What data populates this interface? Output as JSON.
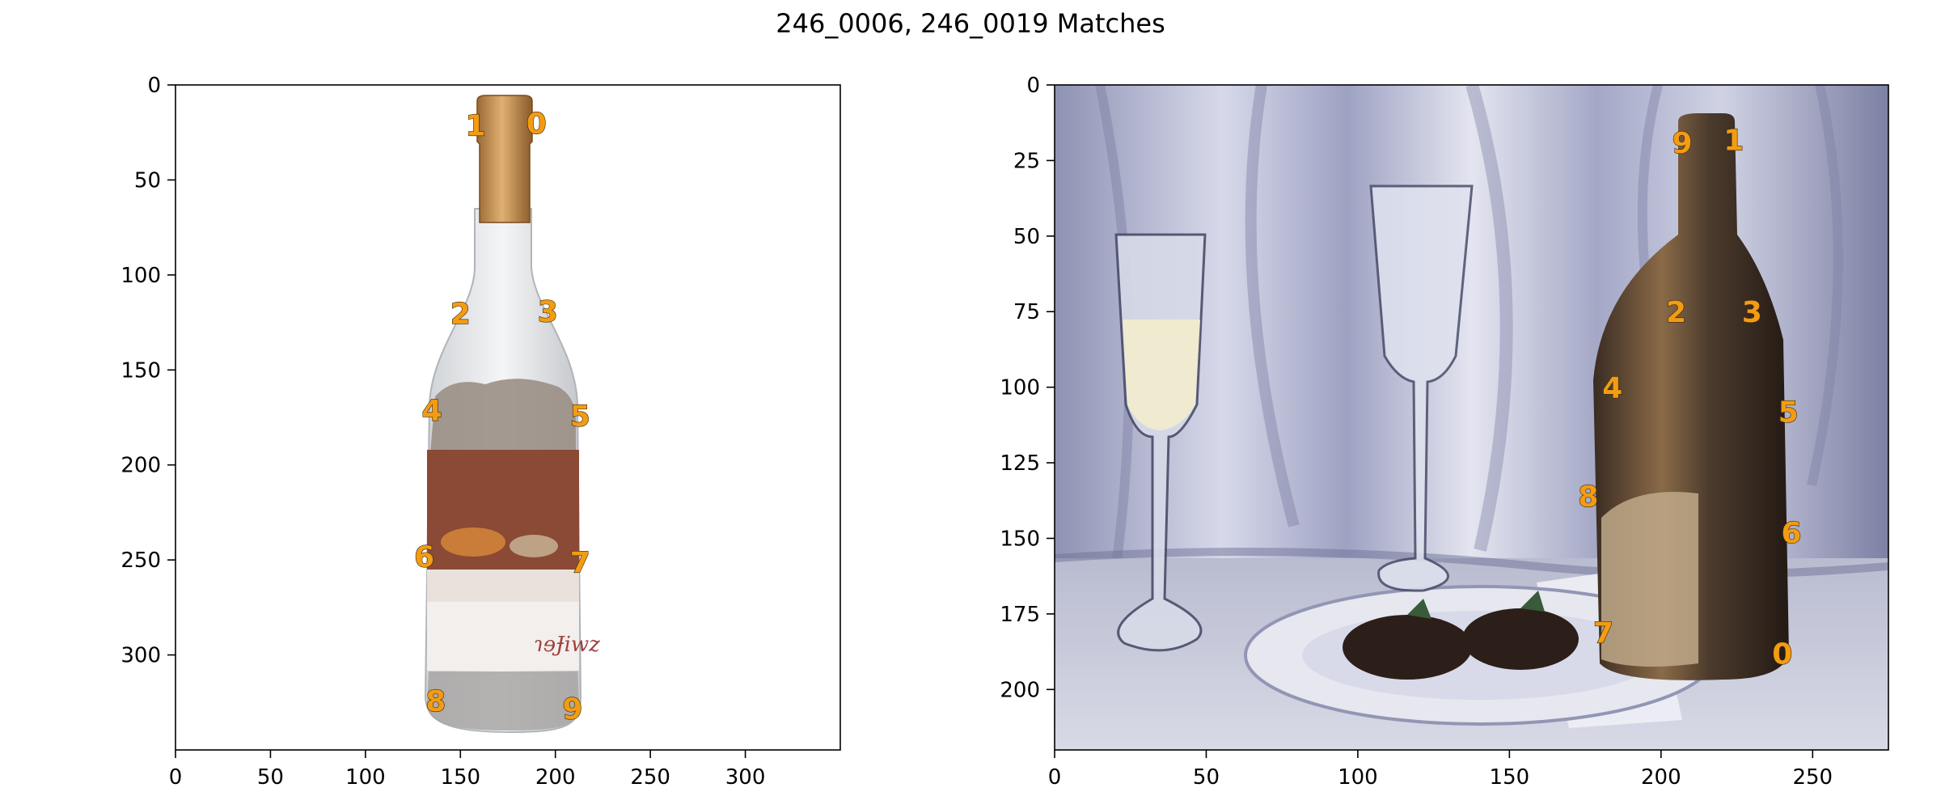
{
  "figure": {
    "title": "246_0006, 246_0019 Matches"
  },
  "colors": {
    "keypoint_label": "#f39c12",
    "background": "#ffffff",
    "axes": "#000000",
    "left_cork": "#c8975a",
    "left_label_band": "#8a4a36",
    "right_bottle": "#4a3a2c",
    "right_drape": "#9fa3c3"
  },
  "chart_data": [
    {
      "type": "scatter",
      "image": "246_0006",
      "image_content": "photo of clear glass bottle filled with jigsaw puzzle pieces, copper cap, painted still-life label",
      "xlim": [
        0,
        350
      ],
      "ylim": [
        350,
        0
      ],
      "xticks": [
        0,
        50,
        100,
        150,
        200,
        250,
        300
      ],
      "yticks": [
        0,
        50,
        100,
        150,
        200,
        250,
        300
      ],
      "grid": false,
      "keypoints": [
        {
          "label": "0",
          "x": 190,
          "y": 20
        },
        {
          "label": "1",
          "x": 158,
          "y": 21
        },
        {
          "label": "2",
          "x": 150,
          "y": 120
        },
        {
          "label": "3",
          "x": 196,
          "y": 119
        },
        {
          "label": "4",
          "x": 135,
          "y": 171
        },
        {
          "label": "5",
          "x": 213,
          "y": 174
        },
        {
          "label": "6",
          "x": 131,
          "y": 248
        },
        {
          "label": "7",
          "x": 213,
          "y": 251
        },
        {
          "label": "8",
          "x": 137,
          "y": 324
        },
        {
          "label": "9",
          "x": 209,
          "y": 328
        }
      ]
    },
    {
      "type": "scatter",
      "image": "246_0019",
      "image_content": "painting of still life: two wine glasses, dark champagne bottle, plate with two chocolate strawberries, draped cloth",
      "xlim": [
        0,
        275
      ],
      "ylim": [
        220,
        0
      ],
      "xticks": [
        0,
        50,
        100,
        150,
        200,
        250
      ],
      "yticks": [
        0,
        25,
        50,
        75,
        100,
        125,
        150,
        175,
        200
      ],
      "grid": false,
      "keypoints": [
        {
          "label": "0",
          "x": 240,
          "y": 188
        },
        {
          "label": "1",
          "x": 224,
          "y": 18
        },
        {
          "label": "2",
          "x": 205,
          "y": 75
        },
        {
          "label": "3",
          "x": 230,
          "y": 75
        },
        {
          "label": "4",
          "x": 184,
          "y": 100
        },
        {
          "label": "5",
          "x": 242,
          "y": 108
        },
        {
          "label": "6",
          "x": 243,
          "y": 148
        },
        {
          "label": "7",
          "x": 181,
          "y": 181
        },
        {
          "label": "8",
          "x": 176,
          "y": 136
        },
        {
          "label": "9",
          "x": 207,
          "y": 19
        }
      ]
    }
  ]
}
